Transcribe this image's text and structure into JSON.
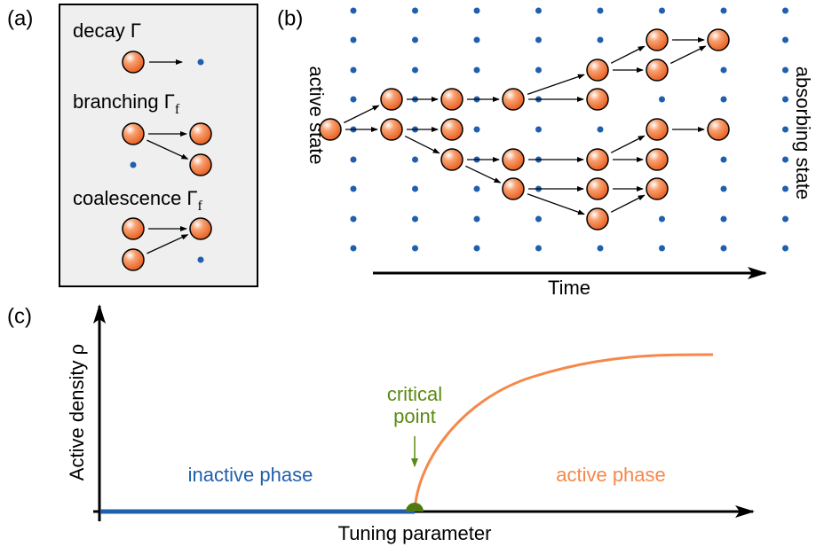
{
  "panels": {
    "a": "(a)",
    "b": "(b)",
    "c": "(c)"
  },
  "processes": {
    "decay": {
      "label": "decay Γ"
    },
    "branching": {
      "label": "branching Γ",
      "subscript": "f"
    },
    "coalescence": {
      "label": "coalescence Γ",
      "subscript": "f"
    }
  },
  "lattice": {
    "left_label": "active state",
    "right_label": "absorbing state",
    "time_label": "Time"
  },
  "transition": {
    "y_label": "Active density ρ",
    "x_label": "Tuning parameter",
    "critical_point": [
      "critical",
      "point"
    ],
    "inactive_label": "inactive phase",
    "active_label": "active phase"
  }
}
